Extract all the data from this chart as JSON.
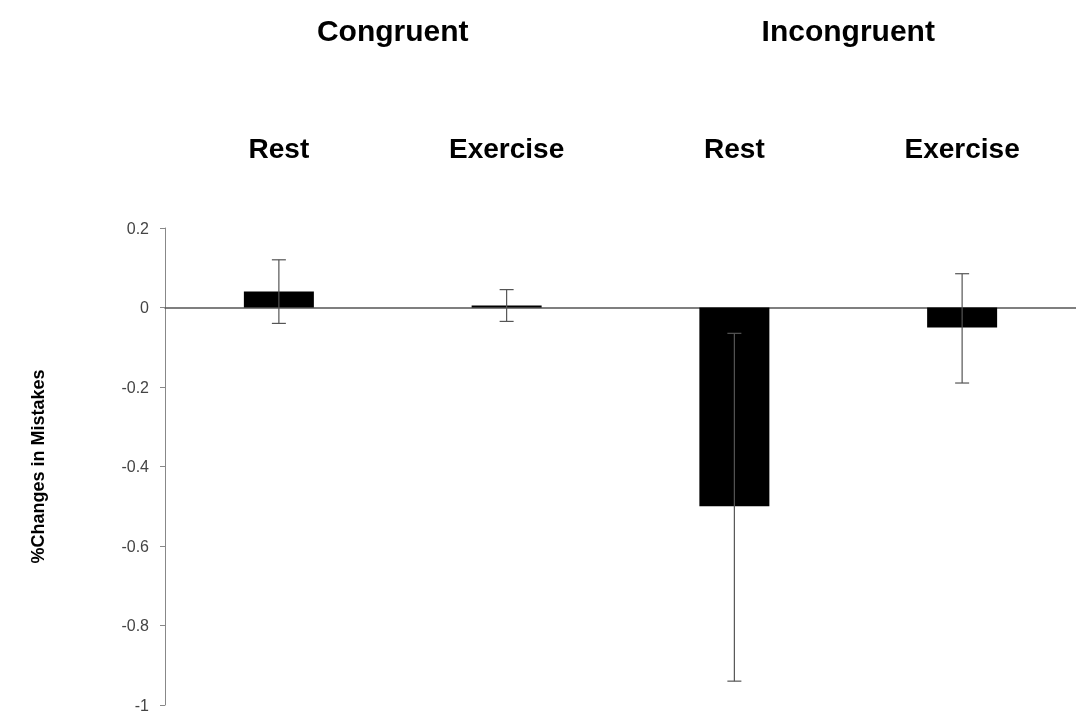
{
  "chart_data": {
    "type": "bar",
    "ylabel": "%Changes in Mistakes",
    "categories": [
      "Rest",
      "Exercise",
      "Rest",
      "Exercise"
    ],
    "values": [
      0.04,
      0.005,
      -0.5,
      -0.05
    ],
    "errors": [
      [
        -0.04,
        0.12
      ],
      [
        -0.035,
        0.045
      ],
      [
        -0.94,
        -0.065
      ],
      [
        -0.19,
        0.085
      ]
    ],
    "color": "#000000",
    "annotations": [
      "Congruent",
      "Incongruent"
    ],
    "ylim": [
      -1,
      0.2
    ],
    "yticks": [
      -1,
      -0.8,
      -0.6,
      -0.4,
      -0.2,
      0,
      0.2
    ]
  }
}
